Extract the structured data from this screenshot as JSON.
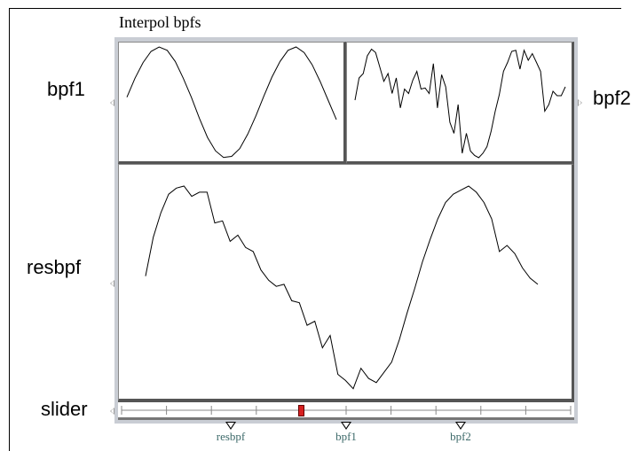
{
  "box": {
    "title": "Interpol bpfs"
  },
  "labels": {
    "bpf1": "bpf1",
    "bpf2": "bpf2",
    "resbpf": "resbpf",
    "slider": "slider"
  },
  "markers": [
    {
      "label": "resbpf"
    },
    {
      "label": "bpf1"
    },
    {
      "label": "bpf2"
    }
  ],
  "slider": {
    "value_fraction": 0.4,
    "tick_count": 11
  },
  "bpf1_points": [
    0.55,
    0.72,
    0.86,
    0.96,
    1.0,
    0.97,
    0.87,
    0.72,
    0.55,
    0.36,
    0.19,
    0.07,
    0.01,
    0.02,
    0.09,
    0.22,
    0.38,
    0.56,
    0.73,
    0.87,
    0.97,
    1.0,
    0.95,
    0.84,
    0.69,
    0.52,
    0.35
  ],
  "bpf2_points": [
    0.52,
    0.72,
    0.76,
    0.92,
    0.98,
    0.95,
    0.82,
    0.69,
    0.76,
    0.58,
    0.72,
    0.45,
    0.62,
    0.58,
    0.7,
    0.78,
    0.62,
    0.63,
    0.58,
    0.85,
    0.45,
    0.75,
    0.64,
    0.32,
    0.22,
    0.48,
    0.04,
    0.22,
    0.06,
    0.02,
    0.0,
    0.04,
    0.1,
    0.24,
    0.42,
    0.57,
    0.78,
    0.86,
    0.96,
    0.97,
    0.8,
    0.97,
    0.88,
    0.94,
    0.86,
    0.78,
    0.42,
    0.48,
    0.6,
    0.56,
    0.56,
    0.64
  ],
  "resbpf_points": [
    0.56,
    0.75,
    0.87,
    0.96,
    0.99,
    1.0,
    0.95,
    0.97,
    0.97,
    0.82,
    0.83,
    0.73,
    0.76,
    0.7,
    0.68,
    0.59,
    0.54,
    0.51,
    0.52,
    0.44,
    0.43,
    0.32,
    0.34,
    0.21,
    0.27,
    0.08,
    0.05,
    0.01,
    0.11,
    0.06,
    0.04,
    0.09,
    0.14,
    0.25,
    0.38,
    0.5,
    0.63,
    0.74,
    0.84,
    0.92,
    0.96,
    0.98,
    1.0,
    0.97,
    0.92,
    0.84,
    0.68,
    0.71,
    0.67,
    0.6,
    0.55,
    0.52
  ]
}
